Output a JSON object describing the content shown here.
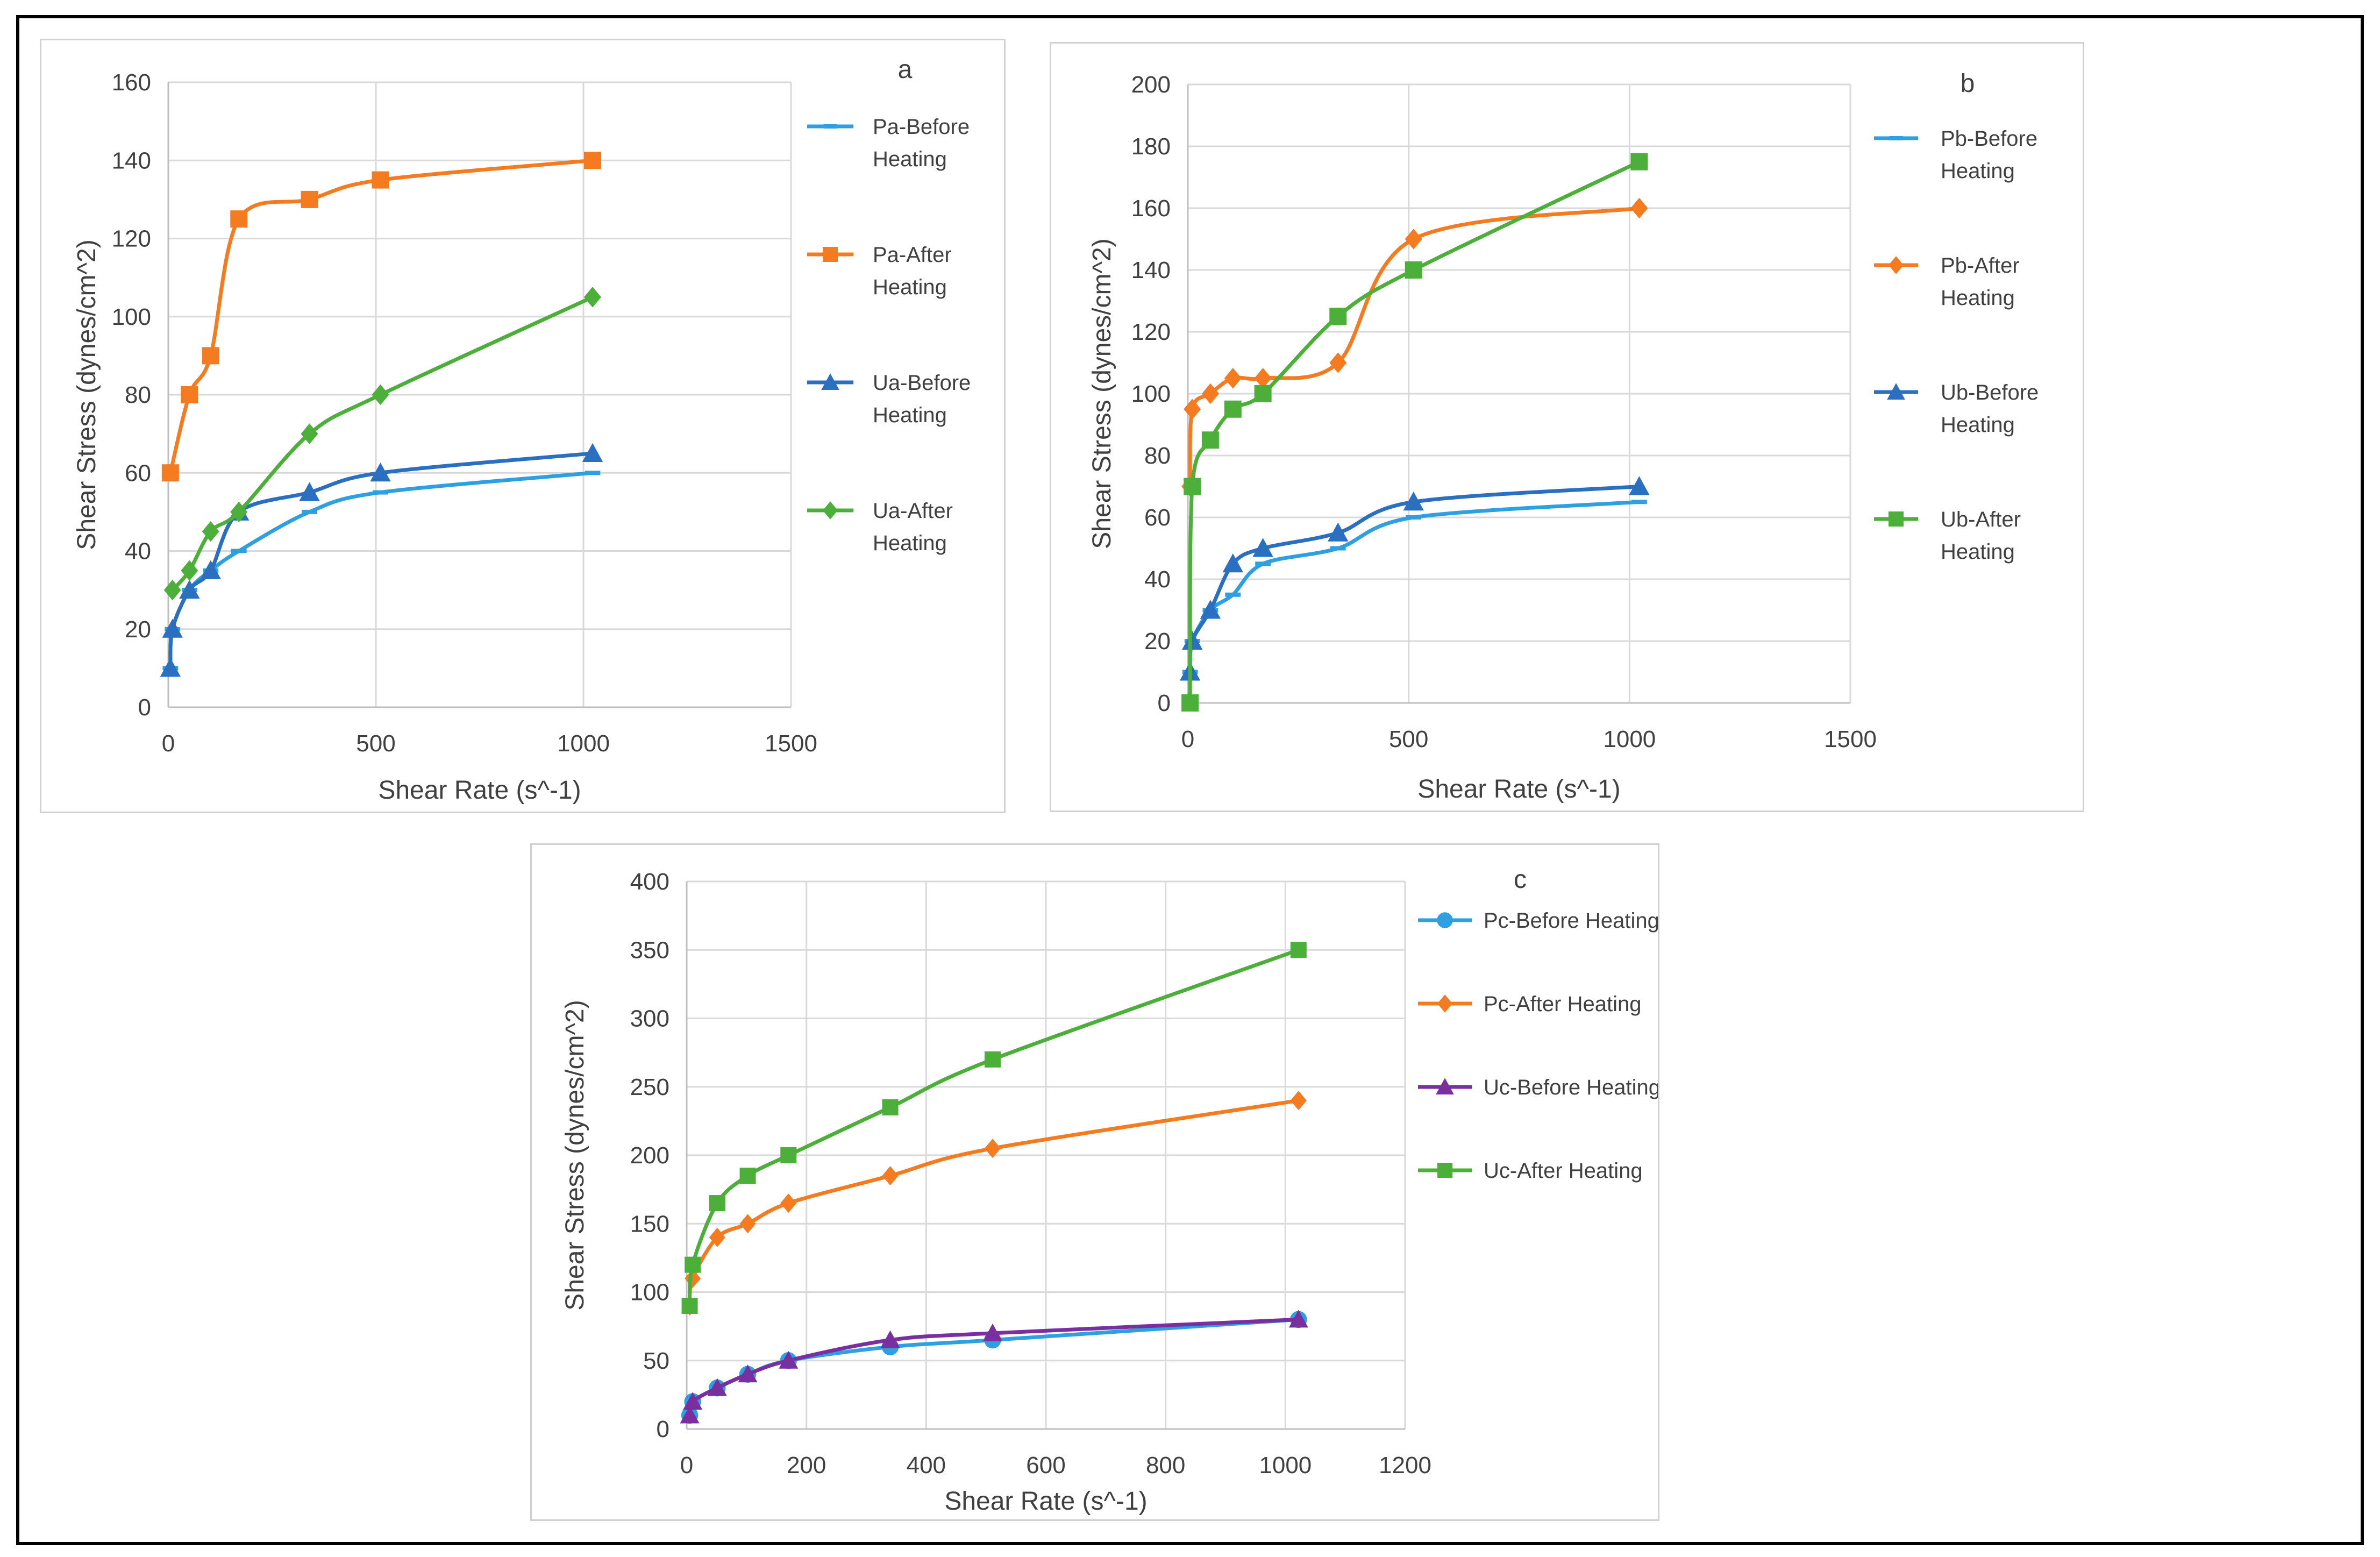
{
  "colors": {
    "light_blue": "#2E9FE0",
    "orange": "#F47B20",
    "dark_blue": "#2B6FC1",
    "green": "#4CAF3A",
    "purple": "#7A2FA0",
    "grid": "#d9d9d9",
    "axis": "#bfbfbf"
  },
  "chart_data": [
    {
      "type": "line",
      "label": "a",
      "xlabel": "Shear Rate (s^-1)",
      "ylabel": "Shear Stress (dynes/cm^2)",
      "xlim": [
        0,
        1500
      ],
      "ylim": [
        0,
        160
      ],
      "xticks": [
        0,
        500,
        1000,
        1500
      ],
      "yticks": [
        0,
        20,
        40,
        60,
        80,
        100,
        120,
        140,
        160
      ],
      "legend_position": "right",
      "series": [
        {
          "name": "Pa-Before Heating",
          "legend_lines": [
            "Pa-Before",
            "Heating"
          ],
          "color": "light_blue",
          "marker": "dash",
          "x": [
            5,
            10,
            51,
            102,
            170,
            340,
            511,
            1022
          ],
          "y": [
            10,
            20,
            30,
            35,
            40,
            50,
            55,
            60
          ]
        },
        {
          "name": "Pa-After Heating",
          "legend_lines": [
            "Pa-After",
            "Heating"
          ],
          "color": "orange",
          "marker": "square",
          "x": [
            5,
            51,
            102,
            170,
            340,
            511,
            1022
          ],
          "y": [
            60,
            80,
            90,
            125,
            130,
            135,
            140
          ]
        },
        {
          "name": "Ua-Before Heating",
          "legend_lines": [
            "Ua-Before",
            "Heating"
          ],
          "color": "dark_blue",
          "marker": "triangle",
          "x": [
            5,
            10,
            51,
            102,
            170,
            340,
            511,
            1022
          ],
          "y": [
            10,
            20,
            30,
            35,
            50,
            55,
            60,
            65
          ]
        },
        {
          "name": "Ua-After Heating",
          "legend_lines": [
            "Ua-After",
            "Heating"
          ],
          "color": "green",
          "marker": "diamond",
          "x": [
            10,
            51,
            102,
            170,
            340,
            511,
            1022
          ],
          "y": [
            30,
            35,
            45,
            50,
            70,
            80,
            105
          ]
        }
      ]
    },
    {
      "type": "line",
      "label": "b",
      "xlabel": "Shear Rate (s^-1)",
      "ylabel": "Shear Stress (dynes/cm^2)",
      "xlim": [
        0,
        1500
      ],
      "ylim": [
        0,
        200
      ],
      "xticks": [
        0,
        500,
        1000,
        1500
      ],
      "yticks": [
        0,
        20,
        40,
        60,
        80,
        100,
        120,
        140,
        160,
        180,
        200
      ],
      "legend_position": "right",
      "series": [
        {
          "name": "Pb-Before Heating",
          "legend_lines": [
            "Pb-Before",
            "Heating"
          ],
          "color": "light_blue",
          "marker": "dash",
          "x": [
            5,
            10,
            51,
            102,
            170,
            340,
            511,
            1022
          ],
          "y": [
            10,
            20,
            30,
            35,
            45,
            50,
            60,
            65
          ]
        },
        {
          "name": "Pb-After Heating",
          "legend_lines": [
            "Pb-After",
            "Heating"
          ],
          "color": "orange",
          "marker": "diamond",
          "x": [
            5,
            10,
            51,
            102,
            170,
            340,
            511,
            1022
          ],
          "y": [
            70,
            95,
            100,
            105,
            105,
            110,
            150,
            160
          ]
        },
        {
          "name": "Ub-Before Heating",
          "legend_lines": [
            "Ub-Before",
            "Heating"
          ],
          "color": "dark_blue",
          "marker": "triangle",
          "x": [
            5,
            10,
            51,
            102,
            170,
            340,
            511,
            1022
          ],
          "y": [
            10,
            20,
            30,
            45,
            50,
            55,
            65,
            70
          ]
        },
        {
          "name": "Ub-After Heating",
          "legend_lines": [
            "Ub-After",
            "Heating"
          ],
          "color": "green",
          "marker": "square",
          "x": [
            5,
            10,
            51,
            102,
            170,
            340,
            511,
            1022
          ],
          "y": [
            0,
            70,
            85,
            95,
            100,
            125,
            140,
            175
          ]
        }
      ]
    },
    {
      "type": "line",
      "label": "c",
      "xlabel": "Shear Rate (s^-1)",
      "ylabel": "Shear Stress (dynes/cm^2)",
      "xlim": [
        0,
        1200
      ],
      "ylim": [
        0,
        400
      ],
      "xticks": [
        0,
        200,
        400,
        600,
        800,
        1000,
        1200
      ],
      "yticks": [
        0,
        50,
        100,
        150,
        200,
        250,
        300,
        350,
        400
      ],
      "legend_position": "right",
      "series": [
        {
          "name": "Pc-Before Heating",
          "legend_lines": [
            "Pc-Before Heating"
          ],
          "color": "light_blue",
          "marker": "circle",
          "x": [
            5,
            10,
            51,
            102,
            170,
            340,
            511,
            1022
          ],
          "y": [
            10,
            20,
            30,
            40,
            50,
            60,
            65,
            80
          ]
        },
        {
          "name": "Pc-After Heating",
          "legend_lines": [
            "Pc-After Heating"
          ],
          "color": "orange",
          "marker": "diamond",
          "x": [
            5,
            10,
            51,
            102,
            170,
            340,
            511,
            1022
          ],
          "y": [
            90,
            110,
            140,
            150,
            165,
            185,
            205,
            240
          ]
        },
        {
          "name": "Uc-Before Heating",
          "legend_lines": [
            "Uc-Before Heating"
          ],
          "color": "purple",
          "marker": "triangle",
          "x": [
            5,
            10,
            51,
            102,
            170,
            340,
            511,
            1022
          ],
          "y": [
            10,
            20,
            30,
            40,
            50,
            65,
            70,
            80
          ]
        },
        {
          "name": "Uc-After Heating",
          "legend_lines": [
            "Uc-After Heating"
          ],
          "color": "green",
          "marker": "square",
          "x": [
            5,
            10,
            51,
            102,
            170,
            340,
            511,
            1022
          ],
          "y": [
            90,
            120,
            165,
            185,
            200,
            235,
            270,
            350
          ]
        }
      ]
    }
  ]
}
